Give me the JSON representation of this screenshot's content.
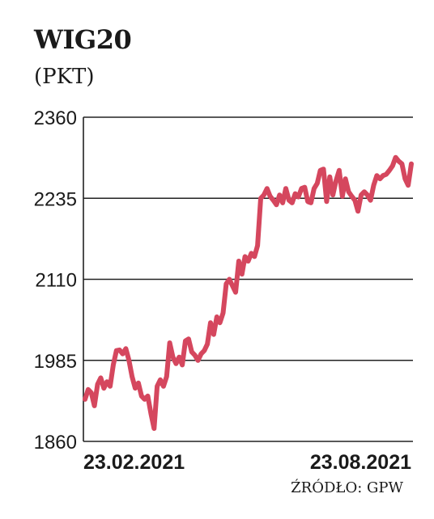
{
  "header": {
    "title": "WIG20",
    "unit": "(PKT)"
  },
  "footer": {
    "source": "ŹRÓDŁO: GPW"
  },
  "colors": {
    "line": "#d5475e",
    "grid": "#222222",
    "axis": "#222222",
    "text": "#1a1a1a"
  },
  "chart_data": {
    "type": "line",
    "title": "WIG20",
    "ylabel": "(PKT)",
    "xlabel": "",
    "ylim": [
      1860,
      2360
    ],
    "yticks": [
      2360,
      2235,
      2110,
      1985,
      1860
    ],
    "xtick_labels": [
      "23.02.2021",
      "23.08.2021"
    ],
    "grid": true,
    "series": [
      {
        "values": [
          1925,
          1940,
          1935,
          1915,
          1948,
          1958,
          1942,
          1952,
          1945,
          1978,
          2000,
          2001,
          1995,
          2003,
          1985,
          1960,
          1942,
          1950,
          1930,
          1925,
          1930,
          1903,
          1880,
          1945,
          1955,
          1945,
          1960,
          2012,
          1990,
          1980,
          1990,
          1978,
          2015,
          2018,
          1998,
          1993,
          1985,
          1995,
          2000,
          2010,
          2043,
          2025,
          2052,
          2043,
          2058,
          2103,
          2110,
          2100,
          2090,
          2138,
          2118,
          2145,
          2138,
          2150,
          2145,
          2162,
          2235,
          2240,
          2250,
          2238,
          2232,
          2225,
          2240,
          2228,
          2250,
          2232,
          2228,
          2242,
          2237,
          2250,
          2252,
          2230,
          2228,
          2250,
          2258,
          2278,
          2280,
          2230,
          2268,
          2240,
          2262,
          2278,
          2238,
          2265,
          2245,
          2238,
          2232,
          2215,
          2240,
          2245,
          2240,
          2232,
          2255,
          2270,
          2265,
          2270,
          2272,
          2278,
          2285,
          2298,
          2292,
          2288,
          2265,
          2255,
          2288
        ]
      }
    ]
  }
}
